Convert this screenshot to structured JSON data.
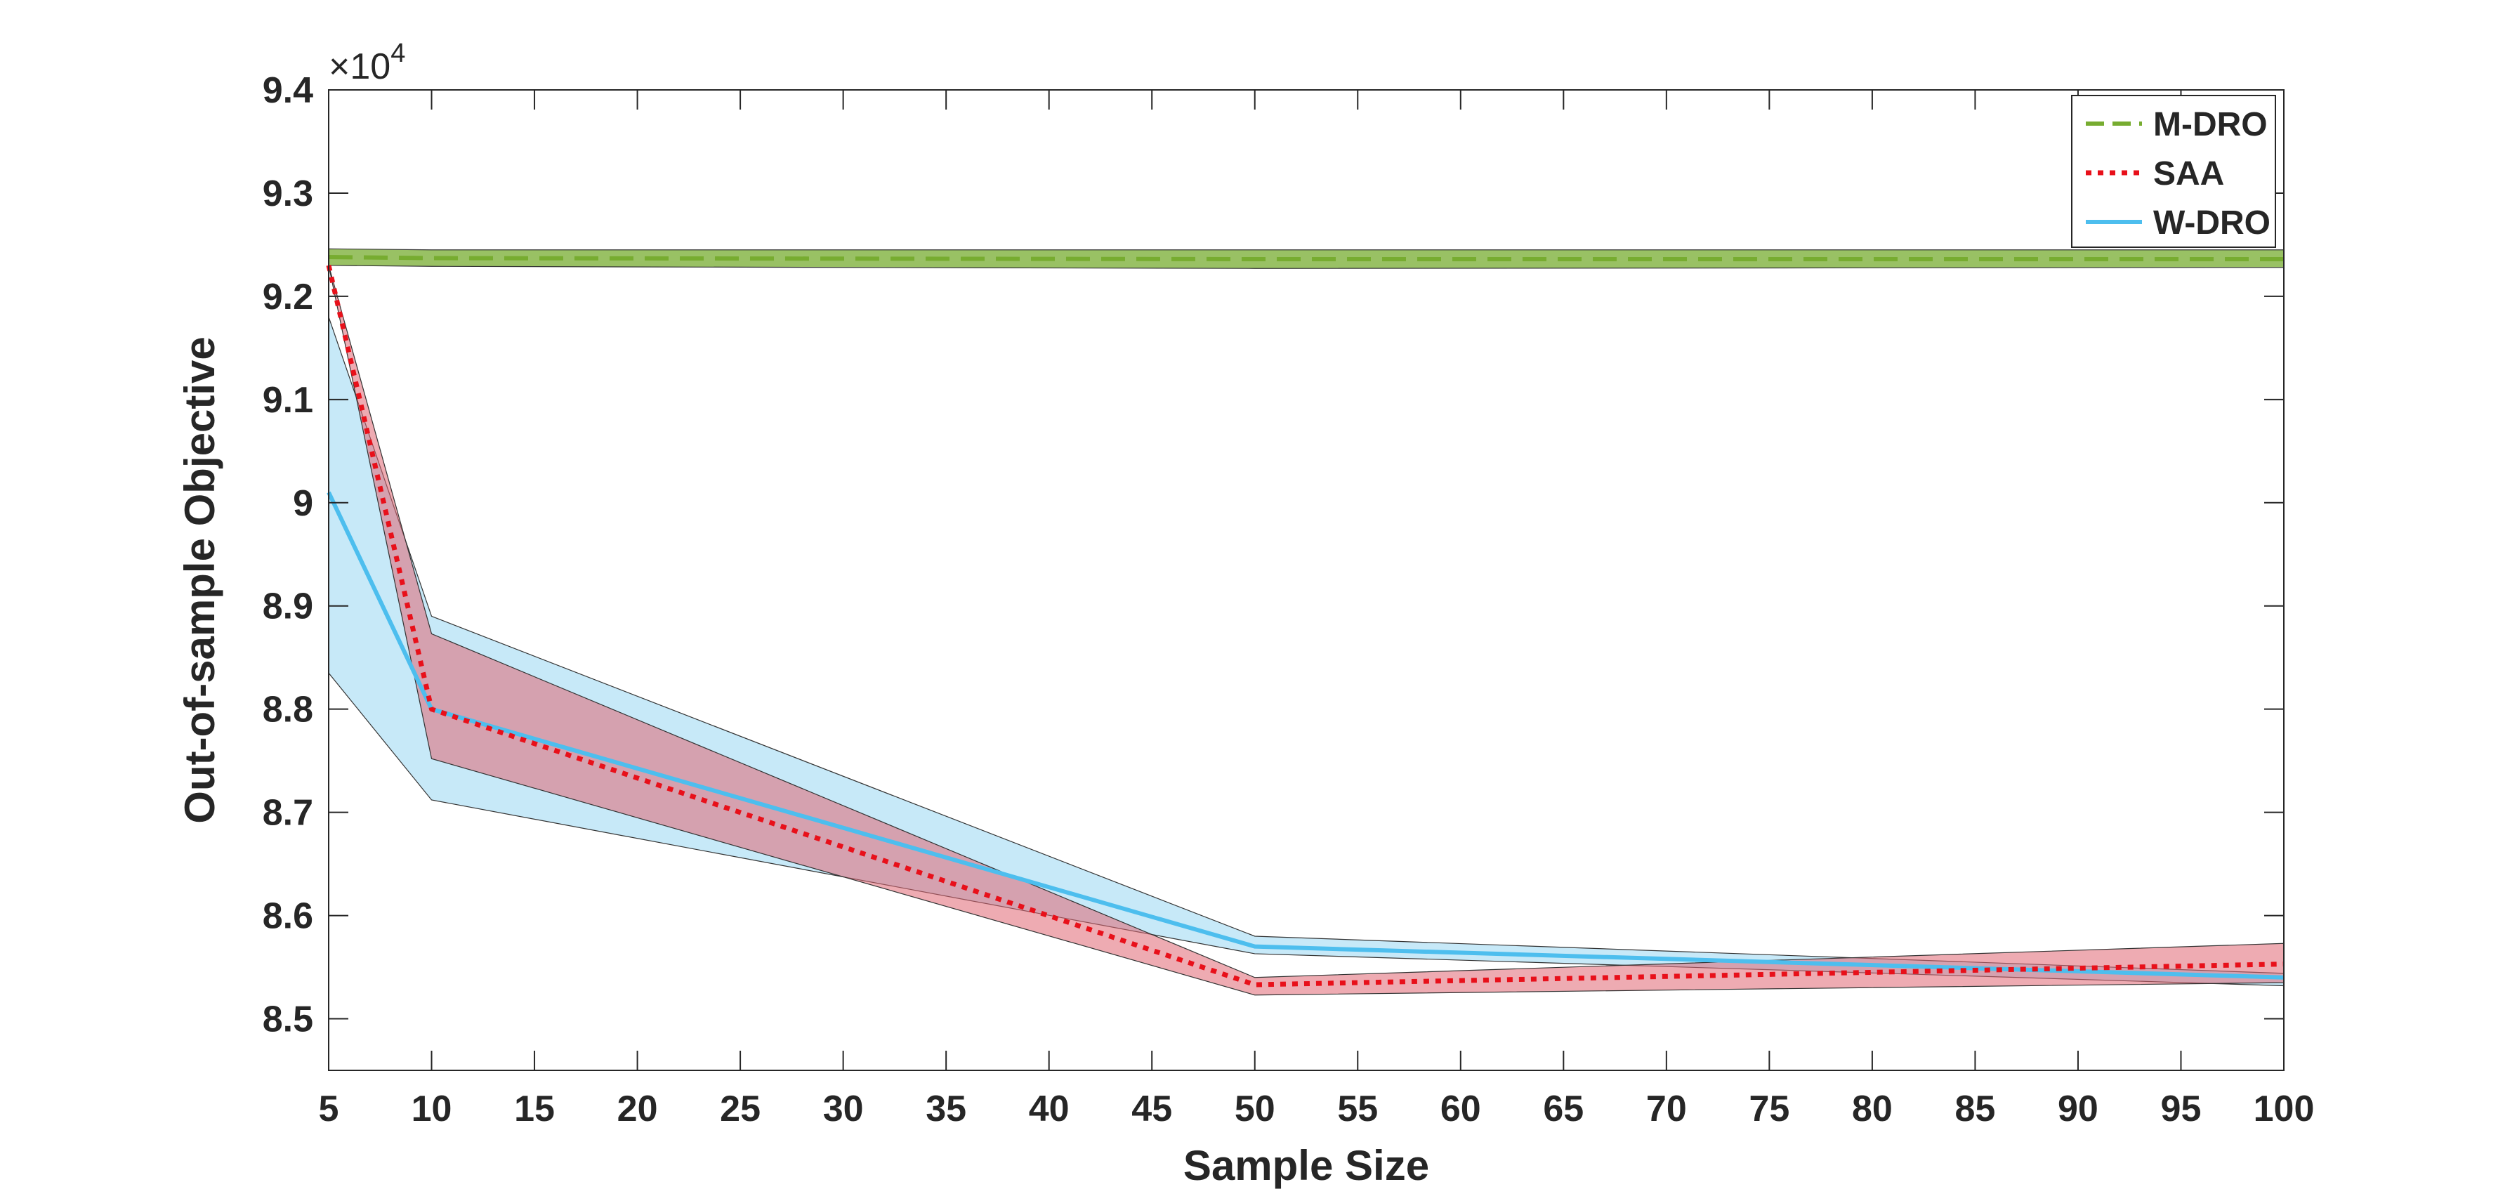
{
  "chart_data": {
    "type": "line",
    "xlabel": "Sample Size",
    "ylabel": "Out-of-sample Objective",
    "y_exponent_label": "×10",
    "y_exponent_power": "4",
    "xlim": [
      5,
      100
    ],
    "ylim": [
      8.45,
      9.4
    ],
    "y_scale_factor": 10000,
    "xticks": [
      5,
      10,
      15,
      20,
      25,
      30,
      35,
      40,
      45,
      50,
      55,
      60,
      65,
      70,
      75,
      80,
      85,
      90,
      95,
      100
    ],
    "yticks": [
      8.5,
      8.6,
      8.7,
      8.8,
      8.9,
      9,
      9.1,
      9.2,
      9.3,
      9.4
    ],
    "ytick_labels": [
      "8.5",
      "8.6",
      "8.7",
      "8.8",
      "8.9",
      "9",
      "9.1",
      "9.2",
      "9.3",
      "9.4"
    ],
    "grid": false,
    "legend_position": "top-right",
    "x": [
      5,
      10,
      50,
      100
    ],
    "series": [
      {
        "name": "M-DRO",
        "style": "dashed",
        "color": "#77AC30",
        "band_color": "#77AC30",
        "values": [
          9.238,
          9.237,
          9.236,
          9.236
        ],
        "upper": [
          9.246,
          9.245,
          9.245,
          9.245
        ],
        "lower": [
          9.23,
          9.229,
          9.227,
          9.228
        ]
      },
      {
        "name": "SAA",
        "style": "dotted",
        "color": "#E8101A",
        "band_color": "#E06672",
        "values": [
          9.23,
          8.8,
          8.533,
          8.553
        ],
        "upper": [
          9.23,
          8.873,
          8.54,
          8.573
        ],
        "lower": [
          9.23,
          8.752,
          8.523,
          8.535
        ]
      },
      {
        "name": "W-DRO",
        "style": "solid",
        "color": "#4DBEEE",
        "band_color": "#A9DDF5",
        "values": [
          9.01,
          8.8,
          8.57,
          8.54
        ],
        "upper": [
          9.18,
          8.89,
          8.58,
          8.544
        ],
        "lower": [
          8.835,
          8.712,
          8.563,
          8.532
        ]
      }
    ]
  }
}
